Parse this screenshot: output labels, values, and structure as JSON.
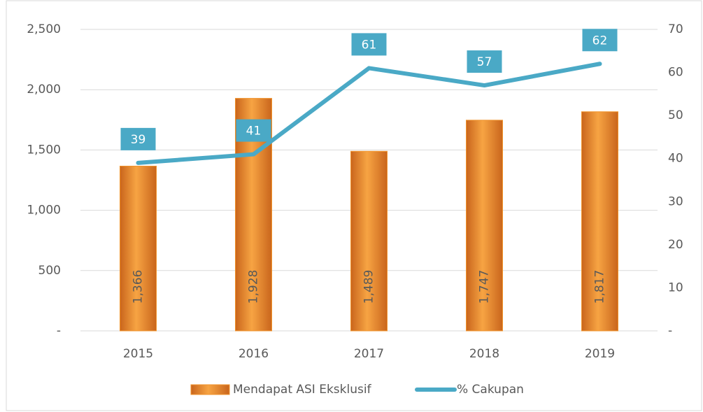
{
  "chart_data": {
    "type": "bar",
    "categories": [
      "2015",
      "2016",
      "2017",
      "2018",
      "2019"
    ],
    "series": [
      {
        "name": "Mendapat ASI Eksklusif",
        "type": "bar",
        "color": "#f0932b",
        "values": [
          1366,
          1928,
          1489,
          1747,
          1817
        ],
        "value_labels": [
          "1,366",
          "1,928",
          "1,489",
          "1,747",
          "1,817"
        ]
      },
      {
        "name": "% Cakupan",
        "type": "line",
        "axis": "y2",
        "color": "#4aa9c6",
        "values": [
          39,
          41,
          61,
          57,
          62
        ]
      }
    ],
    "ylim": [
      0,
      2500
    ],
    "yticks": [
      {
        "value": 0,
        "label": "-"
      },
      500,
      {
        "value": 1000,
        "label": "1,000"
      },
      {
        "value": 1500,
        "label": "1,500"
      },
      {
        "value": 2000,
        "label": "2,000"
      },
      {
        "value": 2500,
        "label": "2,500"
      }
    ],
    "y2lim": [
      0,
      70
    ],
    "y2ticks": [
      {
        "value": 0,
        "label": "-"
      },
      10,
      20,
      30,
      40,
      50,
      60,
      70
    ],
    "grid": true,
    "legend": "bottom"
  }
}
